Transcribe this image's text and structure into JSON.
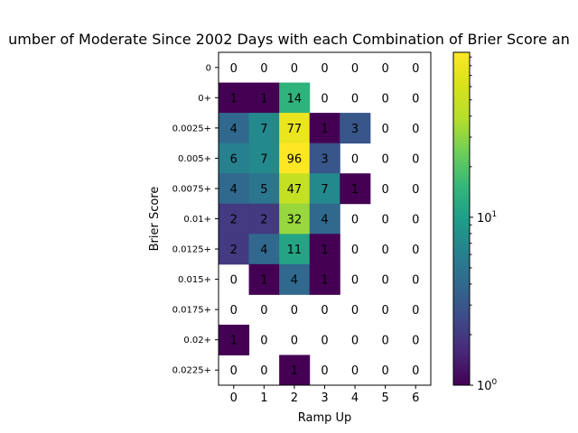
{
  "chart_data": {
    "type": "heatmap",
    "title": "umber of Moderate Since 2002 Days with each Combination of Brier Score an",
    "xlabel": "Ramp Up",
    "ylabel": "Brier Score",
    "x_categories": [
      "0",
      "1",
      "2",
      "3",
      "4",
      "5",
      "6"
    ],
    "y_categories": [
      "0",
      "0+",
      "0.0025+",
      "0.005+",
      "0.0075+",
      "0.01+",
      "0.0125+",
      "0.015+",
      "0.0175+",
      "0.02+",
      "0.0225+"
    ],
    "values": [
      [
        0,
        0,
        0,
        0,
        0,
        0,
        0
      ],
      [
        1,
        1,
        14,
        0,
        0,
        0,
        0
      ],
      [
        4,
        7,
        77,
        1,
        3,
        0,
        0
      ],
      [
        6,
        7,
        96,
        3,
        0,
        0,
        0
      ],
      [
        4,
        5,
        47,
        7,
        1,
        0,
        0
      ],
      [
        2,
        2,
        32,
        4,
        0,
        0,
        0
      ],
      [
        2,
        4,
        11,
        1,
        0,
        0,
        0
      ],
      [
        0,
        1,
        4,
        1,
        0,
        0,
        0
      ],
      [
        0,
        0,
        0,
        0,
        0,
        0,
        0
      ],
      [
        1,
        0,
        0,
        0,
        0,
        0,
        0
      ],
      [
        0,
        0,
        1,
        0,
        0,
        0,
        0
      ]
    ],
    "colorbar": {
      "scale": "log",
      "range": [
        1,
        96
      ],
      "colormap": "viridis",
      "tick_labels": [
        {
          "value": 1,
          "base": "10",
          "exp": "0"
        },
        {
          "value": 10,
          "base": "10",
          "exp": "1"
        }
      ]
    },
    "zero_cells": "blank (white)",
    "grid": false
  }
}
